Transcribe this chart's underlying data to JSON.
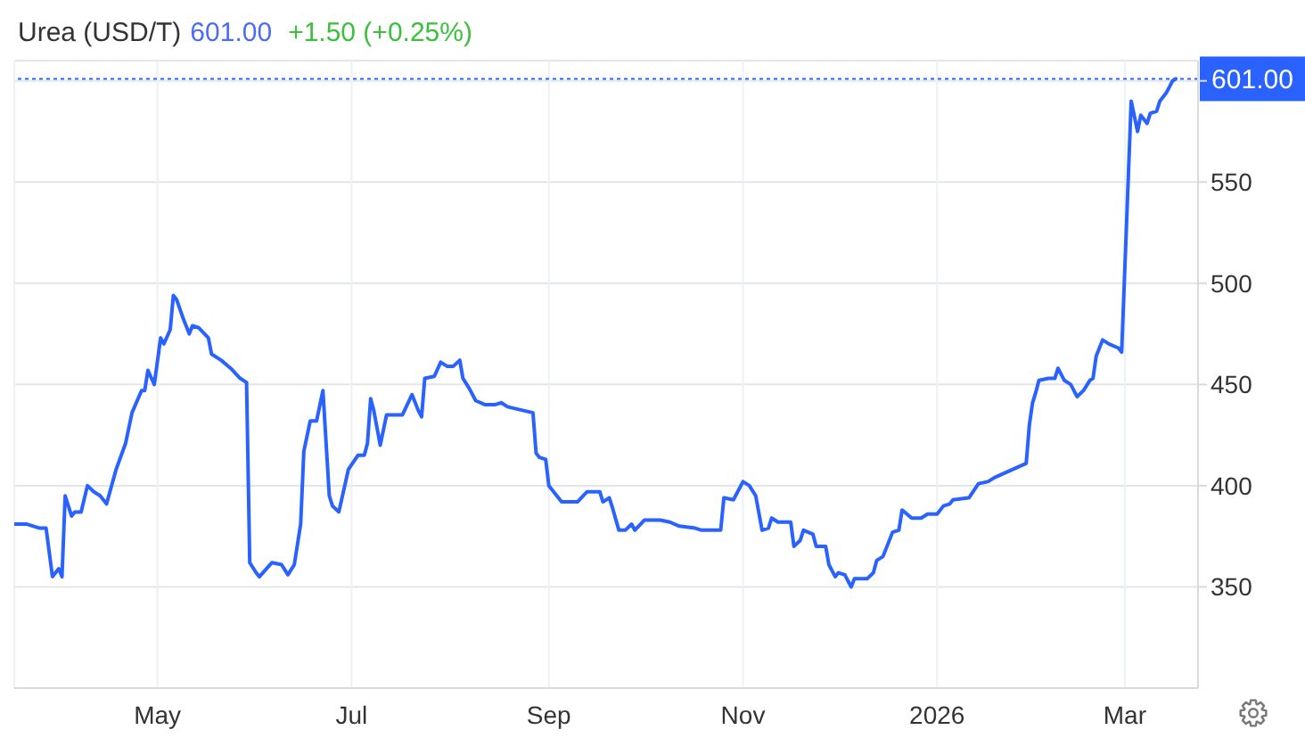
{
  "chart_data": {
    "type": "line",
    "title": "Urea (USD/T)",
    "annotations": [
      "601.00",
      "+1.50 (+0.25%)"
    ],
    "x": [
      "2025-03-17",
      "2025-03-21",
      "2025-03-25",
      "2025-03-27",
      "2025-03-29",
      "2025-03-31",
      "2025-04-01",
      "2025-04-02",
      "2025-04-04",
      "2025-04-05",
      "2025-04-07",
      "2025-04-09",
      "2025-04-11",
      "2025-04-13",
      "2025-04-15",
      "2025-04-18",
      "2025-04-21",
      "2025-04-23",
      "2025-04-26",
      "2025-04-27",
      "2025-04-28",
      "2025-04-30",
      "2025-05-02",
      "2025-05-03",
      "2025-05-05",
      "2025-05-06",
      "2025-05-07",
      "2025-05-09",
      "2025-05-11",
      "2025-05-12",
      "2025-05-14",
      "2025-05-17",
      "2025-05-18",
      "2025-05-21",
      "2025-05-24",
      "2025-05-27",
      "2025-05-29",
      "2025-05-30",
      "2025-06-01",
      "2025-06-02",
      "2025-06-06",
      "2025-06-09",
      "2025-06-11",
      "2025-06-13",
      "2025-06-15",
      "2025-06-16",
      "2025-06-18",
      "2025-06-20",
      "2025-06-22",
      "2025-06-24",
      "2025-06-25",
      "2025-06-27",
      "2025-06-30",
      "2025-07-03",
      "2025-07-05",
      "2025-07-06",
      "2025-07-07",
      "2025-07-08",
      "2025-07-10",
      "2025-07-12",
      "2025-07-17",
      "2025-07-20",
      "2025-07-22",
      "2025-07-23",
      "2025-07-24",
      "2025-07-27",
      "2025-07-29",
      "2025-07-31",
      "2025-08-02",
      "2025-08-04",
      "2025-08-05",
      "2025-08-07",
      "2025-08-09",
      "2025-08-12",
      "2025-08-15",
      "2025-08-17",
      "2025-08-19",
      "2025-08-27",
      "2025-08-28",
      "2025-08-29",
      "2025-08-31",
      "2025-09-01",
      "2025-09-03",
      "2025-09-05",
      "2025-09-07",
      "2025-09-10",
      "2025-09-13",
      "2025-09-17",
      "2025-09-18",
      "2025-09-20",
      "2025-09-21",
      "2025-09-23",
      "2025-09-25",
      "2025-09-27",
      "2025-09-28",
      "2025-10-01",
      "2025-10-06",
      "2025-10-09",
      "2025-10-12",
      "2025-10-17",
      "2025-10-19",
      "2025-10-25",
      "2025-10-26",
      "2025-10-29",
      "2025-11-01",
      "2025-11-03",
      "2025-11-05",
      "2025-11-07",
      "2025-11-09",
      "2025-11-10",
      "2025-11-12",
      "2025-11-16",
      "2025-11-17",
      "2025-11-19",
      "2025-11-20",
      "2025-11-23",
      "2025-11-24",
      "2025-11-27",
      "2025-11-28",
      "2025-11-30",
      "2025-12-01",
      "2025-12-03",
      "2025-12-05",
      "2025-12-06",
      "2025-12-10",
      "2025-12-12",
      "2025-12-13",
      "2025-12-15",
      "2025-12-18",
      "2025-12-20",
      "2025-12-21",
      "2025-12-24",
      "2025-12-27",
      "2025-12-29",
      "2026-01-01",
      "2026-01-03",
      "2026-01-05",
      "2026-01-06",
      "2026-01-11",
      "2026-01-14",
      "2026-01-17",
      "2026-01-19",
      "2026-01-29",
      "2026-01-30",
      "2026-01-31",
      "2026-02-01",
      "2026-02-02",
      "2026-02-05",
      "2026-02-07",
      "2026-02-08",
      "2026-02-10",
      "2026-02-12",
      "2026-02-14",
      "2026-02-16",
      "2026-02-18",
      "2026-02-19",
      "2026-02-20",
      "2026-02-22",
      "2026-02-24",
      "2026-02-27",
      "2026-02-28",
      "2026-03-03",
      "2026-03-05",
      "2026-03-06",
      "2026-03-08",
      "2026-03-09",
      "2026-03-11",
      "2026-03-12",
      "2026-03-14",
      "2026-03-16",
      "2026-03-17"
    ],
    "series": [
      {
        "color": "#2962ff",
        "values": [
          381,
          381,
          379,
          379,
          355,
          359,
          355,
          395,
          385,
          387,
          387,
          400,
          397,
          395,
          391,
          408,
          421,
          436,
          447,
          447,
          457,
          450,
          473,
          470,
          477,
          494,
          492,
          483,
          475,
          479,
          478,
          473,
          465,
          462,
          458,
          453,
          451,
          362,
          357,
          355,
          362,
          361,
          356,
          361,
          381,
          417,
          432,
          432,
          447,
          395,
          390,
          387,
          408,
          415,
          415,
          421,
          443,
          437,
          420,
          435,
          435,
          445,
          437,
          434,
          453,
          454,
          461,
          459,
          459,
          462,
          453,
          448,
          442,
          440,
          440,
          441,
          439,
          436,
          416,
          414,
          413,
          400,
          396,
          392,
          392,
          392,
          397,
          397,
          392,
          394,
          389,
          378,
          378,
          381,
          378,
          383,
          383,
          382,
          380,
          379,
          378,
          378,
          394,
          393,
          402,
          400,
          395,
          378,
          379,
          384,
          382,
          382,
          370,
          373,
          378,
          376,
          370,
          370,
          361,
          355,
          357,
          356,
          350,
          354,
          354,
          357,
          363,
          365,
          377,
          378,
          388,
          384,
          384,
          386,
          386,
          390,
          391,
          393,
          394,
          401,
          402,
          404,
          411,
          430,
          441,
          446,
          452,
          453,
          453,
          458,
          452,
          450,
          444,
          447,
          452,
          453,
          464,
          472,
          470,
          468,
          466,
          590,
          575,
          583,
          579,
          584,
          585,
          590,
          594,
          600,
          601
        ]
      }
    ],
    "xlim": [
      "2025-03-17",
      "2026-03-24"
    ],
    "xticks": [
      {
        "value": "2025-05-01",
        "label": "May"
      },
      {
        "value": "2025-07-01",
        "label": "Jul"
      },
      {
        "value": "2025-09-01",
        "label": "Sep"
      },
      {
        "value": "2025-11-01",
        "label": "Nov"
      },
      {
        "value": "2026-01-01",
        "label": "2026"
      },
      {
        "value": "2026-03-01",
        "label": "Mar"
      }
    ],
    "ylim": [
      300,
      610
    ],
    "yticks": [
      350,
      400,
      450,
      500,
      550,
      {
        "value": 600,
        "label": null
      }
    ],
    "grid": true,
    "ref_lines": [
      {
        "axis": "y",
        "value": 601,
        "label": "601.00",
        "color": "#2962ff",
        "line_style": "dotted"
      }
    ]
  }
}
